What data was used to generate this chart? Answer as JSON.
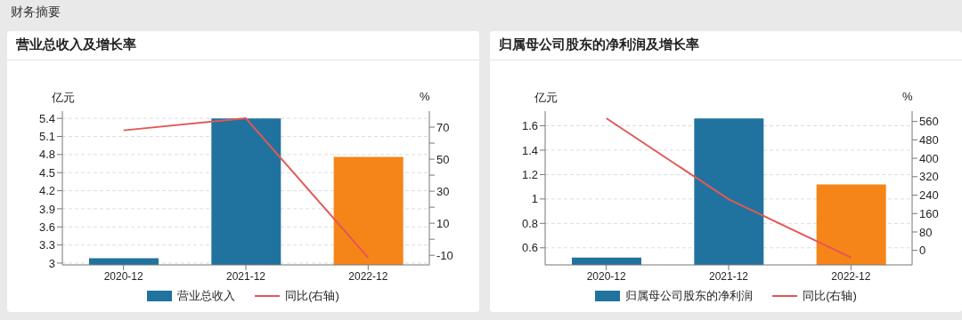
{
  "chart_data": [
    {
      "type": "bar",
      "title": "营业总收入及增长率",
      "annotations": [
        "财务摘要"
      ],
      "ylabel": "亿元",
      "y2label": "%",
      "categories": [
        "2020-12",
        "2021-12",
        "2022-12"
      ],
      "series": [
        {
          "name": "营业总收入",
          "color": "#21739f",
          "colors": [
            "#21739f",
            "#21739f",
            "#f58518"
          ],
          "values": [
            3.08,
            5.4,
            4.76
          ]
        },
        {
          "name": "同比(右轴)",
          "type": "line",
          "axis": "y2",
          "color": "#e45756",
          "values": [
            68,
            75.5,
            -11.5
          ]
        }
      ],
      "ylim": [
        2.97,
        5.52
      ],
      "yticks": [
        3,
        3.3,
        3.6,
        3.9,
        4.2,
        4.5,
        4.8,
        5.1,
        5.4
      ],
      "y2lim": [
        -16,
        80
      ],
      "y2ticks": [
        -10,
        {
          "value": 0,
          "label": null
        },
        10,
        {
          "value": 20,
          "label": null
        },
        30,
        {
          "value": 40,
          "label": null
        },
        50,
        {
          "value": 60,
          "label": null
        },
        70
      ],
      "grid": "y",
      "legend": "bottom",
      "marker": "none"
    },
    {
      "type": "bar",
      "title": "归属母公司股东的净利润及增长率",
      "ylabel": "亿元",
      "y2label": "%",
      "categories": [
        "2020-12",
        "2021-12",
        "2022-12"
      ],
      "series": [
        {
          "name": "归属母公司股东的净利润",
          "color": "#21739f",
          "colors": [
            "#21739f",
            "#21739f",
            "#f58518"
          ],
          "values": [
            0.52,
            1.66,
            1.12
          ]
        },
        {
          "name": "同比(右轴)",
          "type": "line",
          "axis": "y2",
          "color": "#e45756",
          "values": [
            574,
            222,
            -31
          ]
        }
      ],
      "ylim": [
        0.46,
        1.72
      ],
      "yticks": [
        0.6,
        0.8,
        1,
        1.2,
        1.4,
        1.6
      ],
      "y2lim": [
        -63,
        605
      ],
      "y2ticks": [
        0,
        80,
        160,
        240,
        320,
        400,
        480,
        560
      ],
      "grid": "y",
      "legend": "bottom",
      "marker": "none"
    }
  ]
}
